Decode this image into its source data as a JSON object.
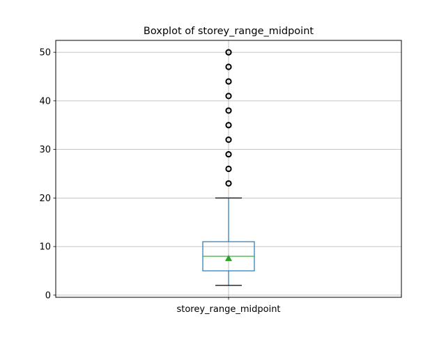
{
  "chart_data": {
    "type": "box",
    "title": "Boxplot of storey_range_midpoint",
    "categories": [
      "storey_range_midpoint"
    ],
    "ylim": [
      -0.45,
      52.45
    ],
    "yticks": [
      0,
      10,
      20,
      30,
      40,
      50
    ],
    "grid": true,
    "series": [
      {
        "whisker_low": 2,
        "q1": 5,
        "median": 8,
        "mean": 7.6,
        "q3": 11,
        "whisker_high": 20,
        "outliers": [
          23,
          26,
          29,
          32,
          35,
          38,
          41,
          44,
          47,
          50
        ]
      }
    ],
    "colors": {
      "box": "#1f77b4",
      "median": "#2ca02c",
      "mean": "#2ca02c",
      "whisker_cap": "#000000",
      "grid": "#b0b0b0",
      "outlier": "#000000"
    }
  }
}
